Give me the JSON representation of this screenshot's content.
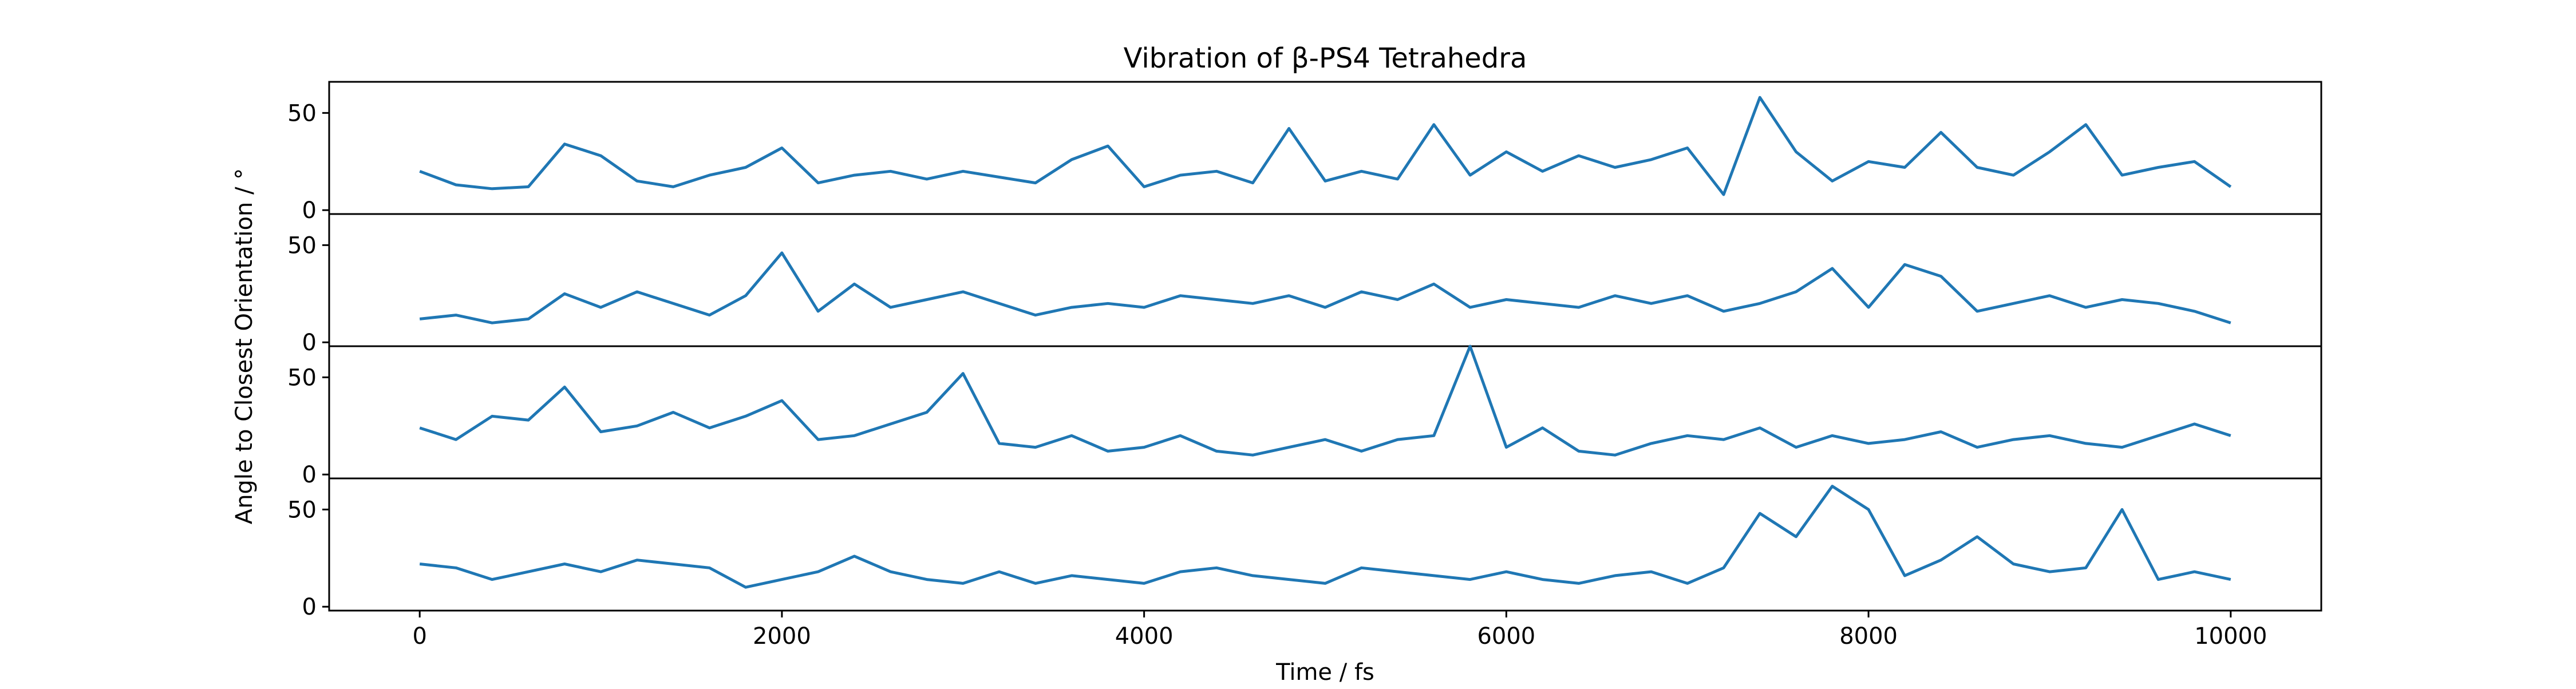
{
  "chart_data": {
    "type": "line",
    "title": "Vibration of β-PS4 Tetrahedra",
    "xlabel": "Time / fs",
    "ylabel": "Angle to Closest Orientation / °",
    "xlim": [
      -500,
      10500
    ],
    "ylim": [
      -2,
      66
    ],
    "xticks": [
      0,
      2000,
      4000,
      6000,
      8000,
      10000
    ],
    "xtick_labels": [
      "0",
      "2000",
      "4000",
      "6000",
      "8000",
      "10000"
    ],
    "yticks": [
      0,
      50
    ],
    "ytick_labels": [
      "0",
      "50"
    ],
    "grid": false,
    "legend": "none",
    "line_color": "#1f77b4",
    "x": [
      0,
      200,
      400,
      600,
      800,
      1000,
      1200,
      1400,
      1600,
      1800,
      2000,
      2200,
      2400,
      2600,
      2800,
      3000,
      3200,
      3400,
      3600,
      3800,
      4000,
      4200,
      4400,
      4600,
      4800,
      5000,
      5200,
      5400,
      5600,
      5800,
      6000,
      6200,
      6400,
      6600,
      6800,
      7000,
      7200,
      7400,
      7600,
      7800,
      8000,
      8200,
      8400,
      8600,
      8800,
      9000,
      9200,
      9400,
      9600,
      9800,
      10000
    ],
    "series": [
      {
        "values": [
          20,
          13,
          11,
          12,
          34,
          28,
          15,
          12,
          18,
          22,
          32,
          14,
          18,
          20,
          16,
          20,
          17,
          14,
          26,
          33,
          12,
          18,
          20,
          14,
          42,
          15,
          20,
          16,
          44,
          18,
          30,
          20,
          28,
          22,
          26,
          32,
          8,
          58,
          30,
          15,
          25,
          22,
          40,
          22,
          18,
          30,
          44,
          18,
          22,
          25,
          12
        ]
      },
      {
        "values": [
          12,
          14,
          10,
          12,
          25,
          18,
          26,
          20,
          14,
          24,
          46,
          16,
          30,
          18,
          22,
          26,
          20,
          14,
          18,
          20,
          18,
          24,
          22,
          20,
          24,
          18,
          26,
          22,
          30,
          18,
          22,
          20,
          18,
          24,
          20,
          24,
          16,
          20,
          26,
          38,
          18,
          40,
          34,
          16,
          20,
          24,
          18,
          22,
          20,
          16,
          10
        ]
      },
      {
        "values": [
          24,
          18,
          30,
          28,
          45,
          22,
          25,
          32,
          24,
          30,
          38,
          18,
          20,
          26,
          32,
          52,
          16,
          14,
          20,
          12,
          14,
          20,
          12,
          10,
          14,
          18,
          12,
          18,
          20,
          66,
          14,
          24,
          12,
          10,
          16,
          20,
          18,
          24,
          14,
          20,
          16,
          18,
          22,
          14,
          18,
          20,
          16,
          14,
          20,
          26,
          20
        ]
      },
      {
        "values": [
          22,
          20,
          14,
          18,
          22,
          18,
          24,
          22,
          20,
          10,
          14,
          18,
          26,
          18,
          14,
          12,
          18,
          12,
          16,
          14,
          12,
          18,
          20,
          16,
          14,
          12,
          20,
          18,
          16,
          14,
          18,
          14,
          12,
          16,
          18,
          12,
          20,
          48,
          36,
          62,
          50,
          16,
          24,
          36,
          22,
          18,
          20,
          50,
          14,
          18,
          14
        ]
      }
    ]
  }
}
